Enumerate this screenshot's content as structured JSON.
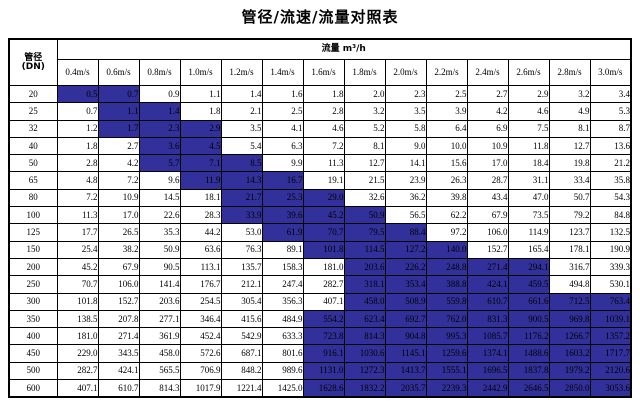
{
  "title": "管径/流速/流量对照表",
  "table": {
    "corner_header_line1": "管径",
    "corner_header_line2": "(DN)",
    "flow_header": "流量 m³/h",
    "velocity_headers": [
      "0.4m/s",
      "0.6m/s",
      "0.8m/s",
      "1.0m/s",
      "1.2m/s",
      "1.4m/s",
      "1.6m/s",
      "1.8m/s",
      "2.0m/s",
      "2.2m/s",
      "2.4m/s",
      "2.6m/s",
      "2.8m/s",
      "3.0m/s"
    ],
    "highlight_color": "#32319b",
    "rows": [
      {
        "dn": "20",
        "highlight": [
          0,
          1
        ],
        "values": [
          "0.5",
          "0.7",
          "0.9",
          "1.1",
          "1.4",
          "1.6",
          "1.8",
          "2.0",
          "2.3",
          "2.5",
          "2.7",
          "2.9",
          "3.2",
          "3.4"
        ]
      },
      {
        "dn": "25",
        "highlight": [
          1,
          2
        ],
        "values": [
          "0.7",
          "1.1",
          "1.4",
          "1.8",
          "2.1",
          "2.5",
          "2.8",
          "3.2",
          "3.5",
          "3.9",
          "4.2",
          "4.6",
          "4.9",
          "5.3"
        ]
      },
      {
        "dn": "32",
        "highlight": [
          1,
          3
        ],
        "values": [
          "1.2",
          "1.7",
          "2.3",
          "2.9",
          "3.5",
          "4.1",
          "4.6",
          "5.2",
          "5.8",
          "6.4",
          "6.9",
          "7.5",
          "8.1",
          "8.7"
        ]
      },
      {
        "dn": "40",
        "highlight": [
          2,
          3
        ],
        "values": [
          "1.8",
          "2.7",
          "3.6",
          "4.5",
          "5.4",
          "6.3",
          "7.2",
          "8.1",
          "9.0",
          "10.0",
          "10.9",
          "11.8",
          "12.7",
          "13.6"
        ]
      },
      {
        "dn": "50",
        "highlight": [
          2,
          4
        ],
        "values": [
          "2.8",
          "4.2",
          "5.7",
          "7.1",
          "8.5",
          "9.9",
          "11.3",
          "12.7",
          "14.1",
          "15.6",
          "17.0",
          "18.4",
          "19.8",
          "21.2"
        ]
      },
      {
        "dn": "65",
        "highlight": [
          3,
          5
        ],
        "values": [
          "4.8",
          "7.2",
          "9.6",
          "11.9",
          "14.3",
          "16.7",
          "19.1",
          "21.5",
          "23.9",
          "26.3",
          "28.7",
          "31.1",
          "33.4",
          "35.8"
        ]
      },
      {
        "dn": "80",
        "highlight": [
          4,
          6
        ],
        "values": [
          "7.2",
          "10.9",
          "14.5",
          "18.1",
          "21.7",
          "25.3",
          "29.0",
          "32.6",
          "36.2",
          "39.8",
          "43.4",
          "47.0",
          "50.7",
          "54.3"
        ]
      },
      {
        "dn": "100",
        "highlight": [
          4,
          7
        ],
        "values": [
          "11.3",
          "17.0",
          "22.6",
          "28.3",
          "33.9",
          "39.6",
          "45.2",
          "50.9",
          "56.5",
          "62.2",
          "67.9",
          "73.5",
          "79.2",
          "84.8"
        ]
      },
      {
        "dn": "125",
        "highlight": [
          5,
          8
        ],
        "values": [
          "17.7",
          "26.5",
          "35.3",
          "44.2",
          "53.0",
          "61.9",
          "70.7",
          "79.5",
          "88.4",
          "97.2",
          "106.0",
          "114.9",
          "123.7",
          "132.5"
        ]
      },
      {
        "dn": "150",
        "highlight": [
          6,
          9
        ],
        "values": [
          "25.4",
          "38.2",
          "50.9",
          "63.6",
          "76.3",
          "89.1",
          "101.8",
          "114.5",
          "127.2",
          "140.0",
          "152.7",
          "165.4",
          "178.1",
          "190.9"
        ]
      },
      {
        "dn": "200",
        "highlight": [
          7,
          11
        ],
        "values": [
          "45.2",
          "67.9",
          "90.5",
          "113.1",
          "135.7",
          "158.3",
          "181.0",
          "203.6",
          "226.2",
          "248.8",
          "271.4",
          "294.1",
          "316.7",
          "339.3"
        ]
      },
      {
        "dn": "250",
        "highlight": [
          7,
          11
        ],
        "values": [
          "70.7",
          "106.0",
          "141.4",
          "176.7",
          "212.1",
          "247.4",
          "282.7",
          "318.1",
          "353.4",
          "388.8",
          "424.1",
          "459.5",
          "494.8",
          "530.1"
        ]
      },
      {
        "dn": "300",
        "highlight": [
          7,
          13
        ],
        "values": [
          "101.8",
          "152.7",
          "203.6",
          "254.5",
          "305.4",
          "356.3",
          "407.1",
          "458.0",
          "508.9",
          "559.8",
          "610.7",
          "661.6",
          "712.5",
          "763.4"
        ]
      },
      {
        "dn": "350",
        "highlight": [
          6,
          13
        ],
        "values": [
          "138.5",
          "207.8",
          "277.1",
          "346.4",
          "415.6",
          "484.9",
          "554.2",
          "623.4",
          "692.7",
          "762.0",
          "831.3",
          "900.5",
          "969.8",
          "1039.1"
        ]
      },
      {
        "dn": "400",
        "highlight": [
          6,
          13
        ],
        "values": [
          "181.0",
          "271.4",
          "361.9",
          "452.4",
          "542.9",
          "633.3",
          "723.8",
          "814.3",
          "904.8",
          "995.3",
          "1085.7",
          "1176.2",
          "1266.7",
          "1357.2"
        ]
      },
      {
        "dn": "450",
        "highlight": [
          6,
          13
        ],
        "values": [
          "229.0",
          "343.5",
          "458.0",
          "572.6",
          "687.1",
          "801.6",
          "916.1",
          "1030.6",
          "1145.1",
          "1259.6",
          "1374.1",
          "1488.6",
          "1603.2",
          "1717.7"
        ]
      },
      {
        "dn": "500",
        "highlight": [
          6,
          13
        ],
        "values": [
          "282.7",
          "424.1",
          "565.5",
          "706.9",
          "848.2",
          "989.6",
          "1131.0",
          "1272.3",
          "1413.7",
          "1555.1",
          "1696.5",
          "1837.8",
          "1979.2",
          "2120.6"
        ]
      },
      {
        "dn": "600",
        "highlight": [
          6,
          13
        ],
        "values": [
          "407.1",
          "610.7",
          "814.3",
          "1017.9",
          "1221.4",
          "1425.0",
          "1628.6",
          "1832.2",
          "2035.7",
          "2239.3",
          "2442.9",
          "2646.5",
          "2850.0",
          "3053.6"
        ]
      }
    ]
  }
}
